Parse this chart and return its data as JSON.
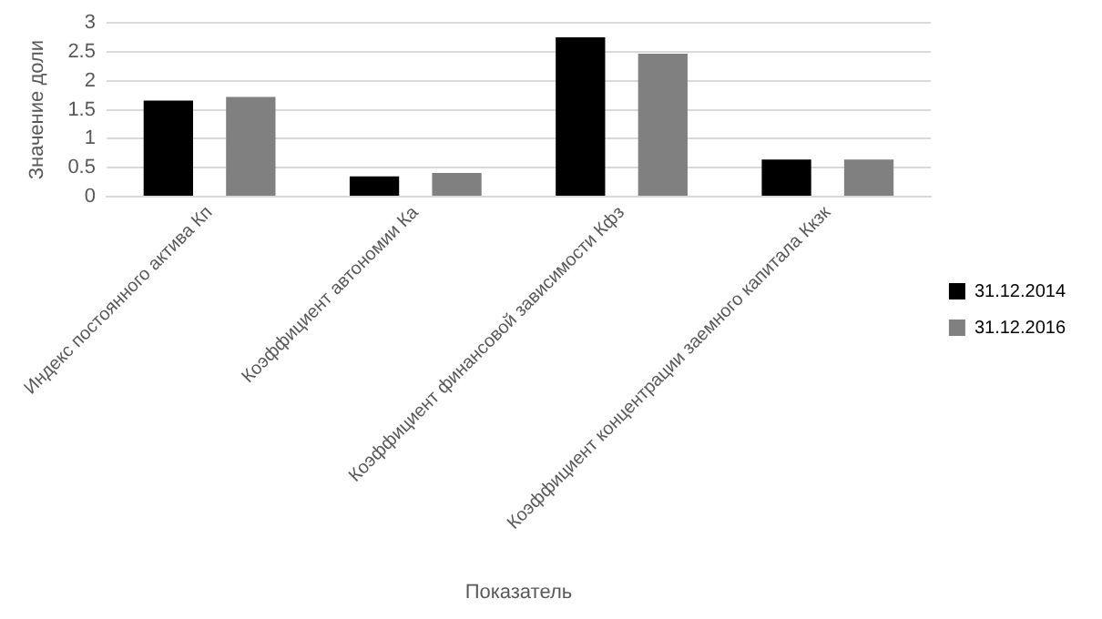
{
  "chart_data": {
    "type": "bar",
    "xlabel": "Показатель",
    "ylabel": "Значение доли",
    "categories": [
      "Индекс постоянного актива Кп",
      "Коэффициент автономии Ка",
      "Коэффициент финансовой зависимости Кфз",
      "Коэффициент концентрации заемного капитала Ккзк"
    ],
    "series": [
      {
        "name": "31.12.2014",
        "color": "#000000",
        "values": [
          1.66,
          0.35,
          2.75,
          0.64
        ]
      },
      {
        "name": "31.12.2016",
        "color": "#808080",
        "values": [
          1.72,
          0.41,
          2.47,
          0.64
        ]
      }
    ],
    "ylim": [
      0,
      3
    ],
    "yticks": [
      0,
      0.5,
      1,
      1.5,
      2,
      2.5,
      3
    ],
    "grid": "y",
    "legend": "right"
  }
}
